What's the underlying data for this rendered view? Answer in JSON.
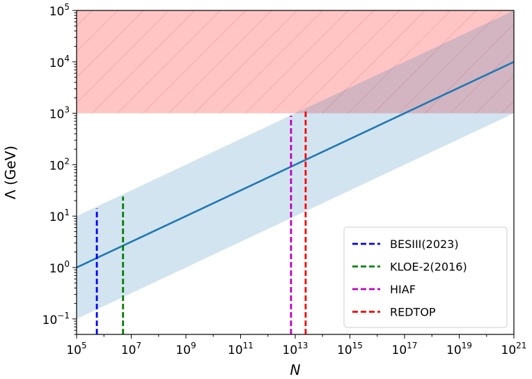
{
  "chart_data": {
    "type": "line",
    "title": "",
    "xlabel": "N",
    "ylabel": "Λ (GeV)",
    "xscale": "log",
    "yscale": "log",
    "xlim": [
      100000.0,
      1e+21
    ],
    "ylim": [
      0.05,
      100000.0
    ],
    "x_ticks": [
      {
        "value": 100000.0,
        "base": "10",
        "exp": "5"
      },
      {
        "value": 10000000.0,
        "base": "10",
        "exp": "7"
      },
      {
        "value": 1000000000.0,
        "base": "10",
        "exp": "9"
      },
      {
        "value": 100000000000.0,
        "base": "10",
        "exp": "11"
      },
      {
        "value": 10000000000000.0,
        "base": "10",
        "exp": "13"
      },
      {
        "value": 1000000000000000.0,
        "base": "10",
        "exp": "15"
      },
      {
        "value": 1e+17,
        "base": "10",
        "exp": "17"
      },
      {
        "value": 1e+19,
        "base": "10",
        "exp": "19"
      },
      {
        "value": 1e+21,
        "base": "10",
        "exp": "21"
      }
    ],
    "y_ticks": [
      {
        "value": 0.1,
        "base": "10",
        "exp": "−1"
      },
      {
        "value": 1,
        "base": "10",
        "exp": "0"
      },
      {
        "value": 10,
        "base": "10",
        "exp": "1"
      },
      {
        "value": 100,
        "base": "10",
        "exp": "2"
      },
      {
        "value": 1000,
        "base": "10",
        "exp": "3"
      },
      {
        "value": 10000,
        "base": "10",
        "exp": "4"
      },
      {
        "value": 100000,
        "base": "10",
        "exp": "5"
      }
    ],
    "main_line": {
      "color": "#1f77b4",
      "x": [
        100000.0,
        1e+21
      ],
      "y": [
        1,
        10000
      ]
    },
    "uncertainty_band": {
      "color": "#1f77b4",
      "opacity": 0.2,
      "x": [
        100000.0,
        1e+21
      ],
      "lower": [
        0.1,
        1000
      ],
      "upper": [
        10,
        100000
      ]
    },
    "excluded_region": {
      "color": "#ff7f7f",
      "opacity": 0.45,
      "hatch": "diagonal",
      "y_min": 1000,
      "y_max": 100000
    },
    "vertical_lines": [
      {
        "name": "BESIII(2023)",
        "x": 550000.0,
        "y_top": 14,
        "color": "#0000ff"
      },
      {
        "name": "KLOE-2(2016)",
        "x": 5000000.0,
        "y_top": 24,
        "color": "#008000"
      },
      {
        "name": "HIAF",
        "x": 7000000000000.0,
        "y_top": 900,
        "color": "#bf00bf"
      },
      {
        "name": "REDTOP",
        "x": 24000000000000.0,
        "y_top": 1200,
        "color": "#ff0000"
      }
    ],
    "legend": {
      "placement": "lower-right"
    },
    "grid": false
  }
}
